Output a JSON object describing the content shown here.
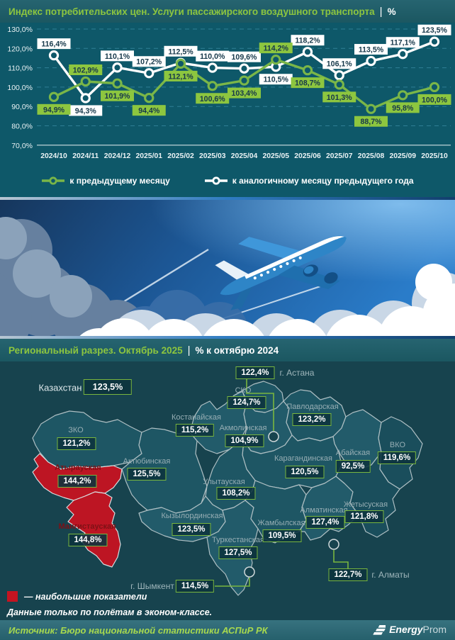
{
  "colors": {
    "accent_green": "#8dc63f",
    "line_green": "#7ab648",
    "line_white": "#ffffff",
    "highlight_red": "#c51421",
    "chart_bg": "#0e5869",
    "map_bg": "#17434e"
  },
  "header": {
    "title": "Индекс потребительских цен. Услуги пассажирского воздушного транспорта",
    "separator": "|",
    "unit": "%"
  },
  "chart_data": {
    "type": "line",
    "title": "Индекс потребительских цен. Услуги пассажирского воздушного транспорта, %",
    "categories": [
      "2024/10",
      "2024/11",
      "2024/12",
      "2025/01",
      "2025/02",
      "2025/03",
      "2025/04",
      "2025/05",
      "2025/06",
      "2025/07",
      "2025/08",
      "2025/09",
      "2025/10"
    ],
    "series": [
      {
        "name": "к предыдущему месяцу",
        "color": "#7ab648",
        "values": [
          94.9,
          102.9,
          101.9,
          94.4,
          112.1,
          100.6,
          103.4,
          114.2,
          108.7,
          101.3,
          88.7,
          95.8,
          100.0
        ]
      },
      {
        "name": "к аналогичному месяцу предыдущего года",
        "color": "#ffffff",
        "values": [
          116.4,
          94.3,
          110.1,
          107.2,
          112.5,
          110.0,
          109.6,
          110.5,
          118.2,
          106.1,
          113.5,
          117.1,
          123.5
        ]
      }
    ],
    "ylim": [
      70,
      130
    ],
    "ytick_values": [
      130,
      120,
      110,
      100,
      90,
      80,
      70
    ],
    "ytick_labels": [
      "130,0%",
      "120,0%",
      "110,0%",
      "100,0%",
      "90,0%",
      "80,0%",
      "70,0%"
    ],
    "grid": "dashed-horizontal",
    "legend_position": "bottom",
    "data_labels": "all-points, comma decimal, % suffix"
  },
  "map": {
    "title": "Региональный разрез. Октябрь 2025",
    "separator": "|",
    "subtitle": "% к октябрю 2024",
    "country": {
      "name": "Казахстан",
      "value": "123,5%"
    },
    "regions": [
      {
        "name": "г. Астана",
        "value": "122,4%",
        "city": true
      },
      {
        "name": "СКО",
        "value": "124,7%"
      },
      {
        "name": "Павлодарская",
        "value": "123,2%"
      },
      {
        "name": "Костанайская",
        "value": "115,2%"
      },
      {
        "name": "Акмолинская",
        "value": "104,9%"
      },
      {
        "name": "ЗКО",
        "value": "121,2%"
      },
      {
        "name": "ВКО",
        "value": "119,6%"
      },
      {
        "name": "Абайская",
        "value": "92,5%"
      },
      {
        "name": "Карагандинская",
        "value": "120,5%"
      },
      {
        "name": "Атырауская",
        "value": "144,2%",
        "highlighted": true
      },
      {
        "name": "Актюбинская",
        "value": "125,5%"
      },
      {
        "name": "Улытауская",
        "value": "108,2%"
      },
      {
        "name": "Мангистауская",
        "value": "144,8%",
        "highlighted": true
      },
      {
        "name": "Кызылординская",
        "value": "123,5%"
      },
      {
        "name": "Туркестанская",
        "value": "127,5%"
      },
      {
        "name": "Жамбылская",
        "value": "109,5%"
      },
      {
        "name": "Алматинская",
        "value": "127,4%"
      },
      {
        "name": "Жетысуская",
        "value": "121,8%"
      },
      {
        "name": "г. Алматы",
        "value": "122,7%",
        "city": true
      },
      {
        "name": "г. Шымкент",
        "value": "114,5%",
        "city": true
      }
    ],
    "legend_label": "— наибольшие показатели",
    "note": "Данные только по полётам в эконом-классе."
  },
  "footer": {
    "source": "Источник: Бюро национальной статистики АСПиР РК",
    "logo_bold": "Energy",
    "logo_light": "Prom"
  }
}
